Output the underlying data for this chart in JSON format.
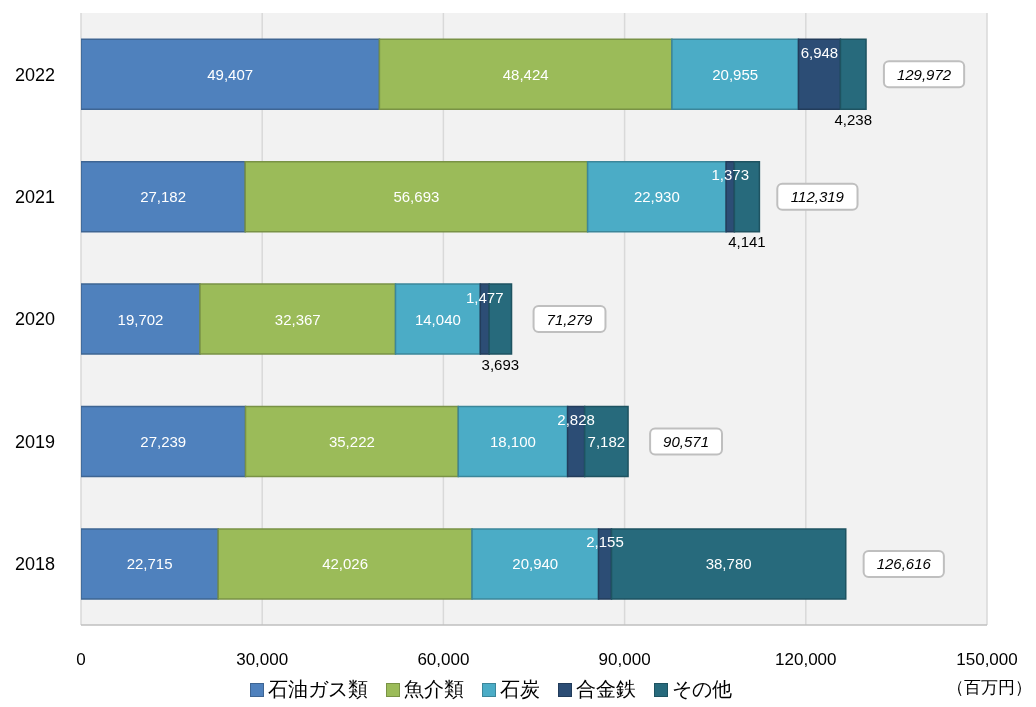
{
  "chart_data": {
    "type": "bar",
    "orientation": "horizontal",
    "stacked": true,
    "categories": [
      "2022",
      "2021",
      "2020",
      "2019",
      "2018"
    ],
    "series": [
      {
        "name": "石油ガス類",
        "color": "#4f81bd",
        "values": [
          49407,
          27182,
          19702,
          27239,
          22715
        ],
        "value_labels": [
          "49,407",
          "27,182",
          "19,702",
          "27,239",
          "22,715"
        ]
      },
      {
        "name": "魚介類",
        "color": "#9bbb59",
        "values": [
          48424,
          56693,
          32367,
          35222,
          42026
        ],
        "value_labels": [
          "48,424",
          "56,693",
          "32,367",
          "35,222",
          "42,026"
        ]
      },
      {
        "name": "石炭",
        "color": "#4bacc6",
        "values": [
          20955,
          22930,
          14040,
          18100,
          20940
        ],
        "value_labels": [
          "20,955",
          "22,930",
          "14,040",
          "18,100",
          "20,940"
        ]
      },
      {
        "name": "合金鉄",
        "color": "#2c4d75",
        "values": [
          6948,
          1373,
          1477,
          2828,
          2155
        ],
        "value_labels": [
          "6,948",
          "1,373",
          "1,477",
          "2,828",
          "2,155"
        ]
      },
      {
        "name": "その他",
        "color": "#276a7c",
        "values": [
          4238,
          4141,
          3693,
          7182,
          38780
        ],
        "value_labels": [
          "4,238",
          "4,141",
          "3,693",
          "7,182",
          "38,780"
        ]
      }
    ],
    "xlim": [
      0,
      150000
    ],
    "xticks": [
      0,
      {
        "value": 30000,
        "label": "30,000"
      },
      {
        "value": 60000,
        "label": "60,000"
      },
      {
        "value": 90000,
        "label": "90,000"
      },
      {
        "value": 120000,
        "label": "120,000"
      },
      {
        "value": 150000,
        "label": "150,000"
      }
    ],
    "xlabel": "（百万円）",
    "grid": "x",
    "legend": "bottom",
    "totals": [
      "129,972",
      "112,319",
      "71,279",
      "90,571",
      "126,616"
    ]
  }
}
